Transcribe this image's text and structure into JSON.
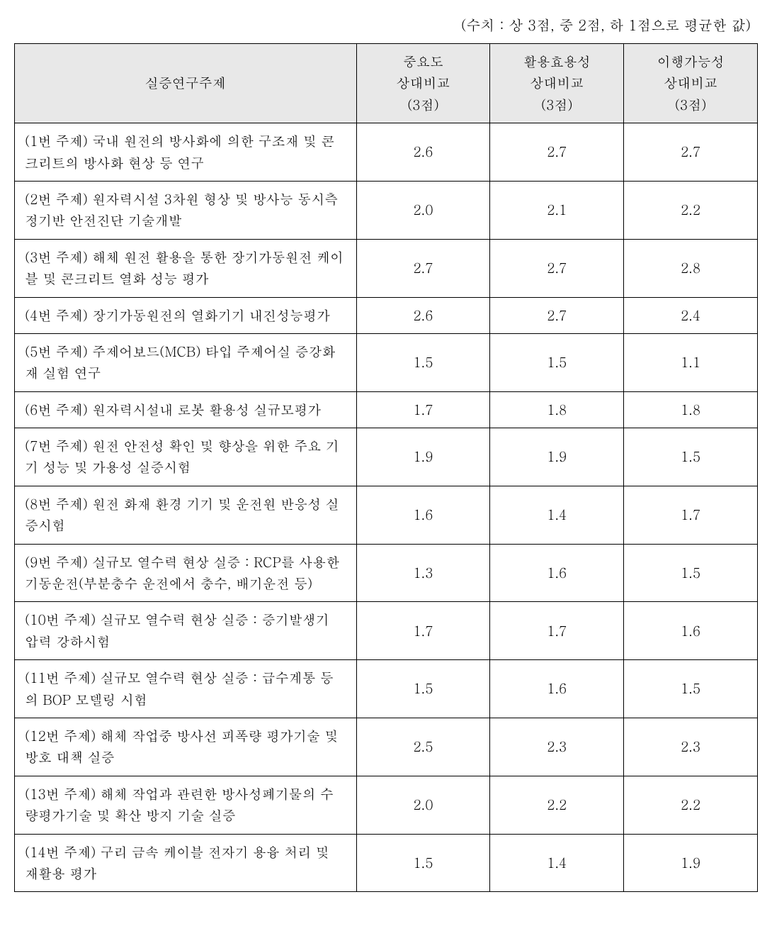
{
  "caption": "(수치 : 상 3점, 중 2점, 하 1점으로 평균한 값)",
  "table": {
    "columns": [
      {
        "label": "실증연구주제"
      },
      {
        "line1": "중요도",
        "line2": "상대비교",
        "line3": "(3점)"
      },
      {
        "line1": "활용효용성",
        "line2": "상대비교",
        "line3": "(3점)"
      },
      {
        "line1": "이행가능성",
        "line2": "상대비교",
        "line3": "(3점)"
      }
    ],
    "rows": [
      {
        "topic": "(1번 주제) 국내 원전의 방사화에 의한 구조재 및 콘크리트의 방사화 현상 등 연구",
        "importance": "2.6",
        "utility": "2.7",
        "feasibility": "2.7"
      },
      {
        "topic": "(2번 주제) 원자력시설 3차원 형상 및 방사능 동시측정기반 안전진단 기술개발",
        "importance": "2.0",
        "utility": "2.1",
        "feasibility": "2.2"
      },
      {
        "topic": "(3번 주제) 해체 원전 활용을 통한 장기가동원전 케이블 및 콘크리트 열화 성능 평가",
        "importance": "2.7",
        "utility": "2.7",
        "feasibility": "2.8"
      },
      {
        "topic": "(4번 주제) 장기가동원전의 열화기기 내진성능평가",
        "importance": "2.6",
        "utility": "2.7",
        "feasibility": "2.4"
      },
      {
        "topic": "(5번 주제) 주제어보드(MCB) 타입 주제어실 증강화재 실험 연구",
        "importance": "1.5",
        "utility": "1.5",
        "feasibility": "1.1"
      },
      {
        "topic": "(6번 주제) 원자력시설내 로봇 활용성 실규모평가",
        "importance": "1.7",
        "utility": "1.8",
        "feasibility": "1.8"
      },
      {
        "topic": "(7번 주제) 원전 안전성 확인 및 향상을 위한 주요 기기 성능 및 가용성 실증시험",
        "importance": "1.9",
        "utility": "1.9",
        "feasibility": "1.5"
      },
      {
        "topic": "(8번 주제) 원전 화재 환경 기기 및 운전원 반응성 실증시험",
        "importance": "1.6",
        "utility": "1.4",
        "feasibility": "1.7"
      },
      {
        "topic": "(9번 주제) 실규모 열수력 현상 실증 : RCP를 사용한 기동운전(부분충수 운전에서 충수, 배기운전 등)",
        "importance": "1.3",
        "utility": "1.6",
        "feasibility": "1.5"
      },
      {
        "topic": "(10번 주제) 실규모 열수력 현상 실증 : 증기발생기 압력 강하시험",
        "importance": "1.7",
        "utility": "1.7",
        "feasibility": "1.6"
      },
      {
        "topic": "(11번 주제) 실규모 열수력 현상 실증 : 급수계통 등의 BOP 모델링 시험",
        "importance": "1.5",
        "utility": "1.6",
        "feasibility": "1.5"
      },
      {
        "topic": "(12번 주제) 해체 작업중 방사선 피폭량 평가기술 및 방호 대책 실증",
        "importance": "2.5",
        "utility": "2.3",
        "feasibility": "2.3"
      },
      {
        "topic": "(13번 주제) 해체 작업과 관련한 방사성폐기물의 수량평가기술 및 확산 방지 기술 실증",
        "importance": "2.0",
        "utility": "2.2",
        "feasibility": "2.2"
      },
      {
        "topic": "(14번 주제) 구리 금속 케이블 전자기 용융 처리 및 재활용 평가",
        "importance": "1.5",
        "utility": "1.4",
        "feasibility": "1.9"
      }
    ],
    "header_background": "#e8e8e8",
    "border_color": "#000000",
    "font_family": "Batang",
    "font_size_pt": 14,
    "column_widths_pct": [
      46,
      18,
      18,
      18
    ]
  }
}
